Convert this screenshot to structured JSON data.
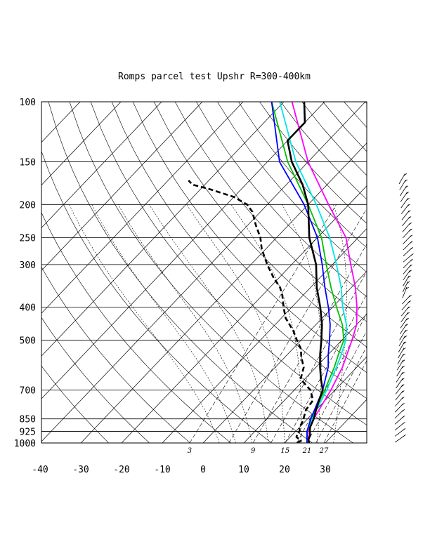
{
  "chart_data": {
    "type": "line",
    "title": "Romps parcel test Upshr R=300-400km",
    "x_axis": {
      "ticks": [
        -40,
        -30,
        -20,
        -10,
        0,
        10,
        20,
        30
      ],
      "range": [
        -40,
        40
      ]
    },
    "y_axis": {
      "scale": "log-pressure",
      "ticks": [
        100,
        150,
        200,
        250,
        300,
        400,
        500,
        700,
        850,
        925,
        1000
      ],
      "range": [
        1000,
        100
      ]
    },
    "mixing_ratio_labels": [
      "3",
      "9",
      "15",
      "21",
      "27"
    ],
    "colors": {
      "temperature": "#000000",
      "dewpoint": "#000000",
      "parcel_blue": "#0000ff",
      "parcel_cyan": "#00e5e5",
      "parcel_green": "#00c000",
      "parcel_magenta": "#ff00ff"
    },
    "series": [
      {
        "id": "temperature",
        "style": "solid-bold",
        "points": [
          [
            1000,
            26
          ],
          [
            975,
            25
          ],
          [
            950,
            24.5
          ],
          [
            925,
            23.5
          ],
          [
            900,
            22.6
          ],
          [
            850,
            21.5
          ],
          [
            800,
            20
          ],
          [
            750,
            18.5
          ],
          [
            700,
            17
          ],
          [
            650,
            14
          ],
          [
            600,
            11
          ],
          [
            550,
            8
          ],
          [
            500,
            5
          ],
          [
            450,
            1.5
          ],
          [
            400,
            -3
          ],
          [
            350,
            -8.5
          ],
          [
            300,
            -14
          ],
          [
            250,
            -22
          ],
          [
            200,
            -30
          ],
          [
            175,
            -36
          ],
          [
            150,
            -44
          ],
          [
            130,
            -50
          ],
          [
            115,
            -50
          ],
          [
            100,
            -55
          ]
        ]
      },
      {
        "id": "dewpoint",
        "style": "dashed-bold",
        "points": [
          [
            1000,
            23
          ],
          [
            985,
            23.5
          ],
          [
            960,
            21.5
          ],
          [
            940,
            21
          ],
          [
            925,
            21
          ],
          [
            900,
            20
          ],
          [
            870,
            19.5
          ],
          [
            850,
            19
          ],
          [
            800,
            17.5
          ],
          [
            750,
            17
          ],
          [
            700,
            14
          ],
          [
            650,
            9
          ],
          [
            600,
            7
          ],
          [
            560,
            4
          ],
          [
            530,
            2
          ],
          [
            500,
            -1
          ],
          [
            470,
            -4
          ],
          [
            430,
            -9
          ],
          [
            400,
            -12
          ],
          [
            370,
            -15
          ],
          [
            350,
            -17.5
          ],
          [
            330,
            -21
          ],
          [
            300,
            -26
          ],
          [
            270,
            -31
          ],
          [
            250,
            -34
          ],
          [
            230,
            -38
          ],
          [
            210,
            -42
          ],
          [
            200,
            -45
          ],
          [
            190,
            -50
          ],
          [
            180,
            -58
          ],
          [
            175,
            -63
          ],
          [
            170,
            -65
          ]
        ]
      },
      {
        "id": "parcel_magenta",
        "style": "solid",
        "points": [
          [
            1000,
            26
          ],
          [
            950,
            24
          ],
          [
            925,
            23
          ],
          [
            850,
            21.5
          ],
          [
            700,
            19
          ],
          [
            600,
            16.5
          ],
          [
            500,
            12.5
          ],
          [
            450,
            10
          ],
          [
            400,
            6
          ],
          [
            350,
            1
          ],
          [
            300,
            -5.5
          ],
          [
            250,
            -13
          ],
          [
            200,
            -25
          ],
          [
            150,
            -40
          ],
          [
            100,
            -58
          ]
        ]
      },
      {
        "id": "parcel_cyan",
        "style": "solid",
        "points": [
          [
            1000,
            25.5
          ],
          [
            925,
            22.8
          ],
          [
            850,
            21
          ],
          [
            700,
            18
          ],
          [
            600,
            15
          ],
          [
            550,
            13.2
          ],
          [
            500,
            11
          ],
          [
            450,
            7.5
          ],
          [
            400,
            2.5
          ],
          [
            350,
            -2.5
          ],
          [
            300,
            -9
          ],
          [
            250,
            -17
          ],
          [
            200,
            -28
          ],
          [
            150,
            -43
          ],
          [
            100,
            -61
          ]
        ]
      },
      {
        "id": "parcel_green",
        "style": "solid",
        "points": [
          [
            1000,
            25.5
          ],
          [
            925,
            22.8
          ],
          [
            850,
            20.8
          ],
          [
            700,
            17.5
          ],
          [
            600,
            14.5
          ],
          [
            550,
            12.5
          ],
          [
            500,
            10.5
          ],
          [
            450,
            6.5
          ],
          [
            400,
            1
          ],
          [
            350,
            -5
          ],
          [
            300,
            -11.5
          ],
          [
            250,
            -19
          ],
          [
            200,
            -30
          ],
          [
            150,
            -45
          ],
          [
            100,
            -63
          ]
        ]
      },
      {
        "id": "parcel_blue",
        "style": "solid",
        "points": [
          [
            1000,
            25.5
          ],
          [
            925,
            22.8
          ],
          [
            850,
            20.8
          ],
          [
            700,
            17
          ],
          [
            600,
            13
          ],
          [
            550,
            10
          ],
          [
            500,
            7
          ],
          [
            450,
            3.5
          ],
          [
            400,
            -1
          ],
          [
            350,
            -6.5
          ],
          [
            300,
            -12.5
          ],
          [
            250,
            -20
          ],
          [
            200,
            -31
          ],
          [
            150,
            -47
          ],
          [
            100,
            -63
          ]
        ]
      }
    ],
    "wind_barbs": {
      "description": "wind barb column right of diagram",
      "count": 44
    }
  }
}
